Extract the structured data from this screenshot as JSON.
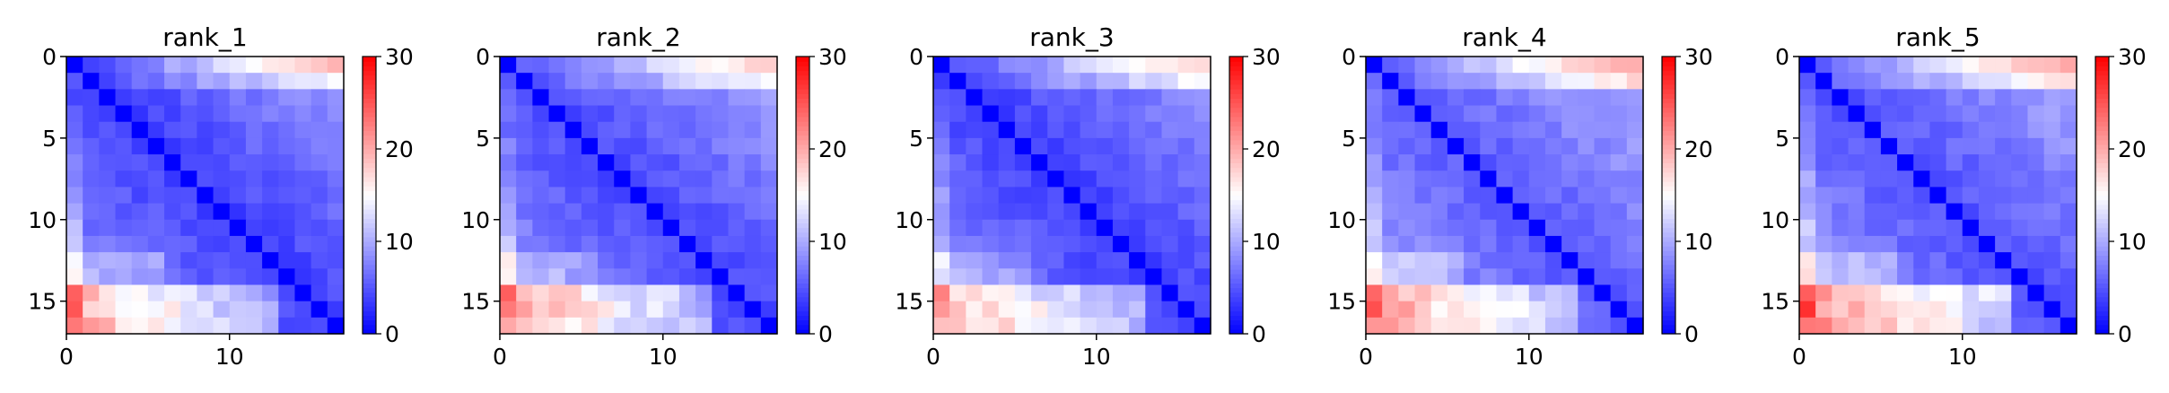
{
  "colormap": {
    "name": "bwr",
    "low": "#0000ff",
    "mid": "#ffffff",
    "high": "#ff0000"
  },
  "chart_data": [
    {
      "type": "heatmap",
      "title": "rank_1",
      "size": 17,
      "vmin": 0,
      "vmax": 30,
      "x_ticks": [
        "0",
        "10"
      ],
      "y_ticks": [
        "0",
        "5",
        "10",
        "15"
      ],
      "colorbar_ticks": [
        "0",
        "10",
        "20",
        "30"
      ],
      "near_diag": 2.5,
      "bottom_left": 21,
      "top_right": 18,
      "top_row_ramp": 5,
      "bottom_row_ramp": 3
    },
    {
      "type": "heatmap",
      "title": "rank_2",
      "size": 17,
      "vmin": 0,
      "vmax": 30,
      "x_ticks": [
        "0",
        "10"
      ],
      "y_ticks": [
        "0",
        "5",
        "10",
        "15"
      ],
      "colorbar_ticks": [
        "0",
        "10",
        "20",
        "30"
      ],
      "near_diag": 3,
      "bottom_left": 19,
      "top_right": 17,
      "top_row_ramp": 5,
      "bottom_row_ramp": 3
    },
    {
      "type": "heatmap",
      "title": "rank_3",
      "size": 17,
      "vmin": 0,
      "vmax": 30,
      "x_ticks": [
        "0",
        "10"
      ],
      "y_ticks": [
        "0",
        "5",
        "10",
        "15"
      ],
      "colorbar_ticks": [
        "0",
        "10",
        "20",
        "30"
      ],
      "near_diag": 2.5,
      "bottom_left": 18,
      "top_right": 17,
      "top_row_ramp": 4,
      "bottom_row_ramp": 3
    },
    {
      "type": "heatmap",
      "title": "rank_4",
      "size": 17,
      "vmin": 0,
      "vmax": 30,
      "x_ticks": [
        "0",
        "10"
      ],
      "y_ticks": [
        "0",
        "5",
        "10",
        "15"
      ],
      "colorbar_ticks": [
        "0",
        "10",
        "20",
        "30"
      ],
      "near_diag": 4,
      "bottom_left": 21,
      "top_right": 19,
      "top_row_ramp": 4,
      "bottom_row_ramp": 3
    },
    {
      "type": "heatmap",
      "title": "rank_5",
      "size": 17,
      "vmin": 0,
      "vmax": 30,
      "x_ticks": [
        "0",
        "10"
      ],
      "y_ticks": [
        "0",
        "5",
        "10",
        "15"
      ],
      "colorbar_ticks": [
        "0",
        "10",
        "20",
        "30"
      ],
      "near_diag": 3.5,
      "bottom_left": 22,
      "top_right": 19,
      "top_row_ramp": 4,
      "bottom_row_ramp": 4
    }
  ]
}
